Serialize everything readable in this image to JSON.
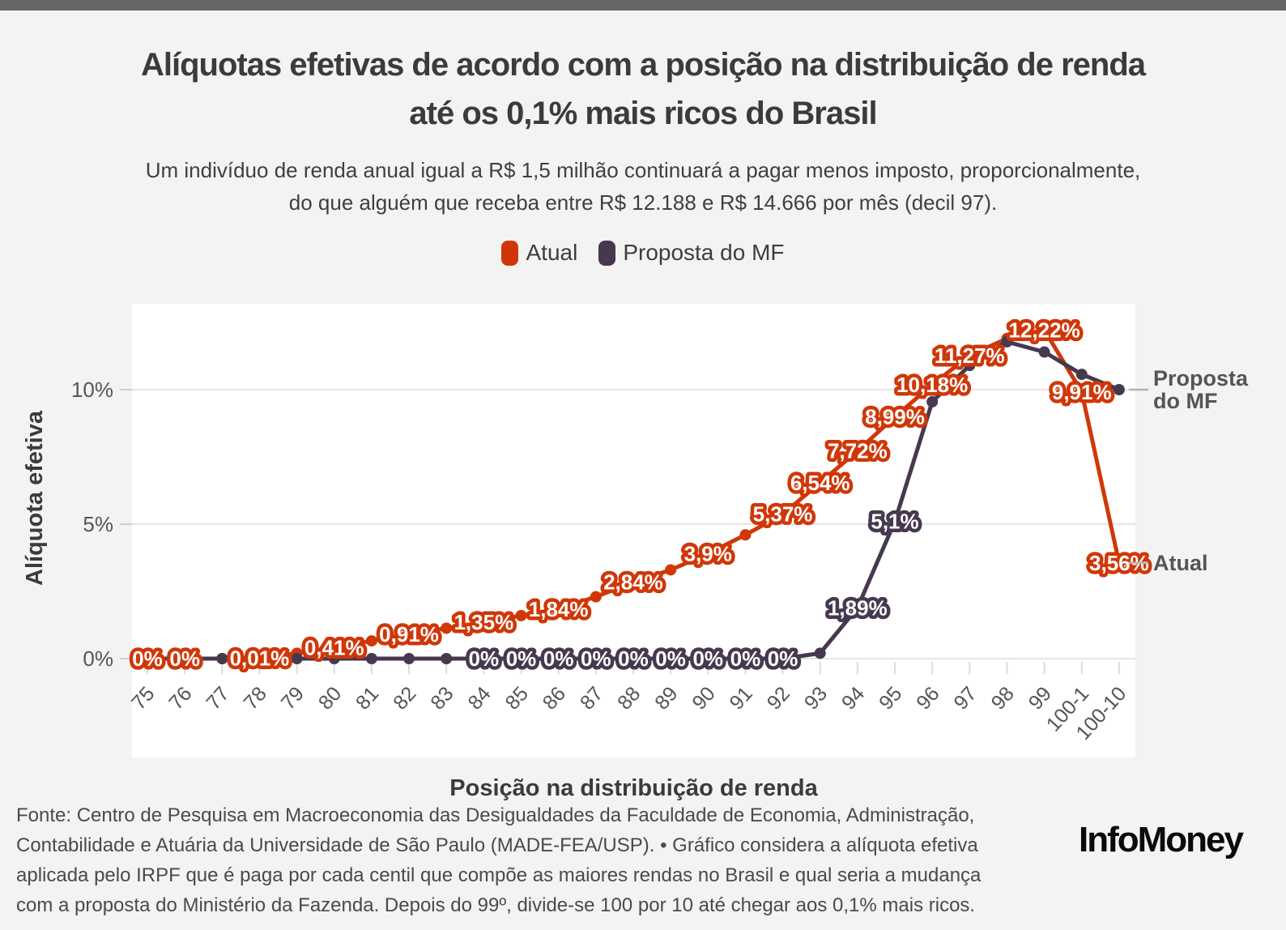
{
  "topbar_color": "#676767",
  "header": {
    "title_line1": "Alíquotas efetivas de acordo com a posição na distribuição de renda",
    "title_line2": "até os 0,1% mais ricos do Brasil",
    "subtitle_line1": "Um indivíduo de renda anual igual a R$ 1,5 milhão continuará a pagar menos imposto, proporcionalmente,",
    "subtitle_line2": "do que alguém que receba entre R$ 12.188 e R$ 14.666 por mês (decil 97)."
  },
  "legend": {
    "items": [
      {
        "label": "Atual",
        "color": "#d03708"
      },
      {
        "label": "Proposta do MF",
        "color": "#46394f"
      }
    ]
  },
  "chart_data": {
    "type": "line",
    "title": "Alíquotas efetivas de acordo com a posição na distribuição de renda até os 0,1% mais ricos do Brasil",
    "xlabel": "Posição na distribuição de renda",
    "ylabel": "Alíquota efetiva",
    "categories": [
      "75",
      "76",
      "77",
      "78",
      "79",
      "80",
      "81",
      "82",
      "83",
      "84",
      "85",
      "86",
      "87",
      "88",
      "89",
      "90",
      "91",
      "92",
      "93",
      "94",
      "95",
      "96",
      "97",
      "98",
      "99",
      "100-1",
      "100-10"
    ],
    "yticks": [
      {
        "value": 0,
        "label": "0%"
      },
      {
        "value": 5,
        "label": "5%"
      },
      {
        "value": 10,
        "label": "10%"
      }
    ],
    "ylim": [
      0,
      13.2
    ],
    "grid": true,
    "legend_position": "top",
    "series": [
      {
        "name": "Atual",
        "color": "#d03708",
        "values": [
          0,
          0,
          0,
          0.01,
          0.2,
          0.41,
          0.66,
          0.91,
          1.13,
          1.35,
          1.6,
          1.84,
          2.3,
          2.84,
          3.3,
          3.9,
          4.6,
          5.37,
          6.54,
          7.72,
          8.99,
          10.18,
          11.27,
          11.9,
          12.22,
          9.91,
          3.56
        ],
        "point_labels": {
          "75": "0%",
          "76": "0%",
          "78": "0,01%",
          "80": "0,41%",
          "82": "0,91%",
          "84": "1,35%",
          "86": "1,84%",
          "88": "2,84%",
          "90": "3,9%",
          "92": "5,37%",
          "93": "6,54%",
          "94": "7,72%",
          "95": "8,99%",
          "96": "10,18%",
          "97": "11,27%",
          "99": "12,22%",
          "100-1": "9,91%",
          "100-10": "3,56%"
        }
      },
      {
        "name": "Proposta do MF",
        "color": "#46394f",
        "values": [
          0,
          0,
          0,
          0,
          0,
          0,
          0,
          0,
          0,
          0,
          0,
          0,
          0,
          0,
          0,
          0,
          0,
          0,
          0.2,
          1.89,
          5.1,
          9.55,
          10.9,
          11.78,
          11.4,
          10.57,
          10.0
        ],
        "point_labels": {
          "84": "0%",
          "85": "0%",
          "86": "0%",
          "87": "0%",
          "88": "0%",
          "89": "0%",
          "90": "0%",
          "91": "0%",
          "92": "0%",
          "94": "1,89%",
          "95": "5,1%"
        }
      }
    ],
    "annotations": [
      {
        "lines": [
          "Proposta",
          "do MF"
        ],
        "series_index": 1
      },
      {
        "lines": [
          "Atual"
        ],
        "series_index": 0
      }
    ]
  },
  "footer": {
    "lines": [
      "Fonte: Centro de Pesquisa em Macroeconomia das Desigualdades da Faculdade de Economia, Administração,",
      "Contabilidade e Atuária da Universidade de São Paulo (MADE-FEA/USP). • Gráfico considera a alíquota efetiva",
      "aplicada pelo IRPF que é paga por cada centil que compõe as maiores rendas no Brasil e qual seria a mudança",
      "com a proposta do Ministério da Fazenda. Depois do 99º, divide-se 100 por 10 até chegar aos 0,1% mais ricos."
    ]
  },
  "logo_text": "InfoMoney"
}
